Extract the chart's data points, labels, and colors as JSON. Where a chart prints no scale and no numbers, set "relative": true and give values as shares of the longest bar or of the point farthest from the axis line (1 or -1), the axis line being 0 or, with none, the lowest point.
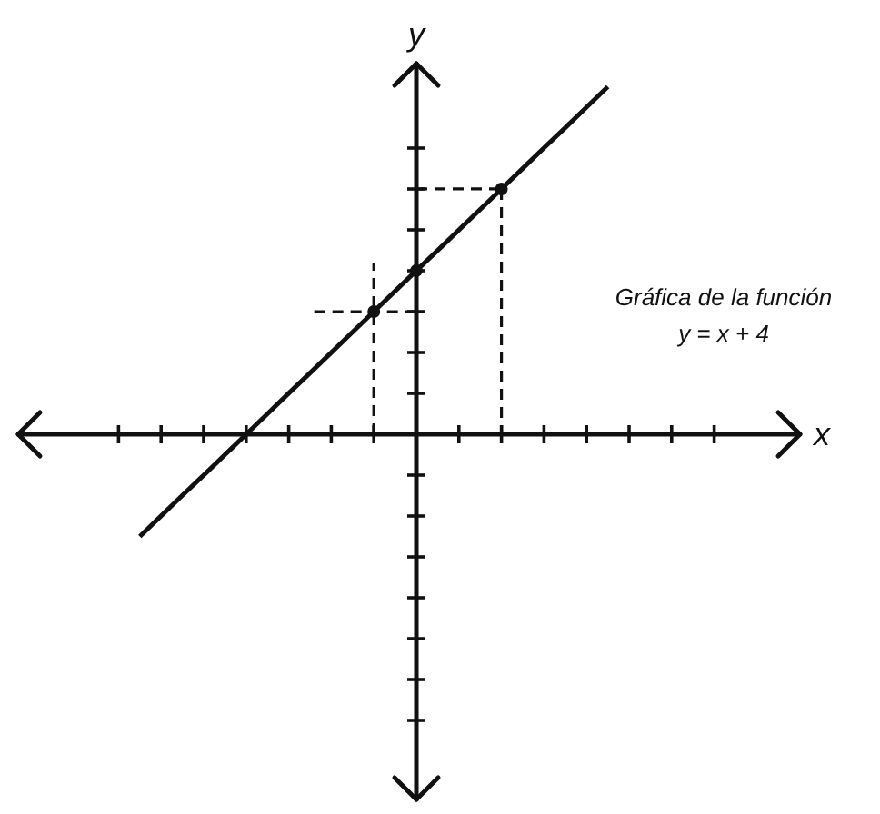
{
  "chart_data": {
    "type": "line",
    "relative": true,
    "annotations": [
      "x",
      "y",
      "Gráfica de la función",
      "y = x + 4"
    ],
    "categories": [
      null,
      null,
      null,
      null,
      null,
      null,
      null,
      null,
      null,
      null,
      null,
      null,
      null,
      null,
      null,
      null,
      null,
      null,
      null,
      null,
      null,
      null,
      null
    ],
    "series": [
      {
        "color": "#111111",
        "values": [
          -0.294,
          -0.235,
          -0.176,
          -0.118,
          -0.059,
          0,
          0.059,
          0.118,
          0.176,
          0.235,
          0.294,
          0.353,
          0.412,
          0.471,
          0.529,
          0.588,
          0.647,
          0.706,
          0.765,
          0.824,
          0.882,
          0.941,
          1
        ]
      }
    ]
  }
}
